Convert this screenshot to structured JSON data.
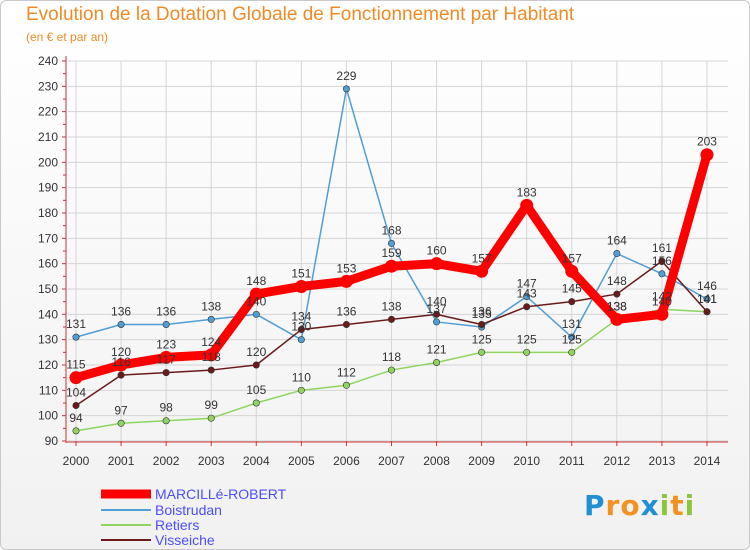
{
  "title": "Evolution de la Dotation Globale de Fonctionnement par Habitant",
  "subtitle": "(en € et par an)",
  "logo_text": "Proxiti",
  "colors": {
    "title": "#ef8c27",
    "axis": "#cc3333",
    "grid": "#d5d5d5",
    "logo_letters": [
      "#1f8fd6",
      "#f29221",
      "#f29221",
      "#1f8fd6",
      "#8cc63e",
      "#f29221",
      "#8cc63e"
    ]
  },
  "chart_data": {
    "type": "line",
    "title": "Evolution de la Dotation Globale de Fonctionnement par Habitant",
    "ylabel": "(en € et par an)",
    "xlabel": "",
    "categories": [
      "2000",
      "2001",
      "2002",
      "2003",
      "2004",
      "2005",
      "2006",
      "2007",
      "2008",
      "2009",
      "2010",
      "2011",
      "2012",
      "2013",
      "2014"
    ],
    "ylim": [
      90,
      240
    ],
    "yticks": [
      90,
      100,
      110,
      120,
      130,
      140,
      150,
      160,
      170,
      180,
      190,
      200,
      210,
      220,
      230,
      240
    ],
    "grid": true,
    "legend_position": "bottom-left",
    "series": [
      {
        "name": "MARCILLé-ROBERT",
        "color": "#ff0000",
        "emphasis": true,
        "values": [
          115,
          120,
          123,
          124,
          148,
          151,
          153,
          159,
          160,
          157,
          183,
          157,
          138,
          140,
          203
        ]
      },
      {
        "name": "Boistrudan",
        "color": "#4f9ed6",
        "emphasis": false,
        "values": [
          131,
          136,
          136,
          138,
          140,
          130,
          229,
          168,
          137,
          135,
          147,
          131,
          164,
          156,
          146
        ]
      },
      {
        "name": "Retiers",
        "color": "#8fd460",
        "emphasis": false,
        "values": [
          94,
          97,
          98,
          99,
          105,
          110,
          112,
          118,
          121,
          125,
          125,
          125,
          138,
          142,
          141
        ]
      },
      {
        "name": "Visseiche",
        "color": "#6b1a1a",
        "emphasis": false,
        "values": [
          104,
          116,
          117,
          118,
          120,
          134,
          136,
          138,
          140,
          136,
          143,
          145,
          148,
          161,
          141
        ]
      }
    ]
  }
}
